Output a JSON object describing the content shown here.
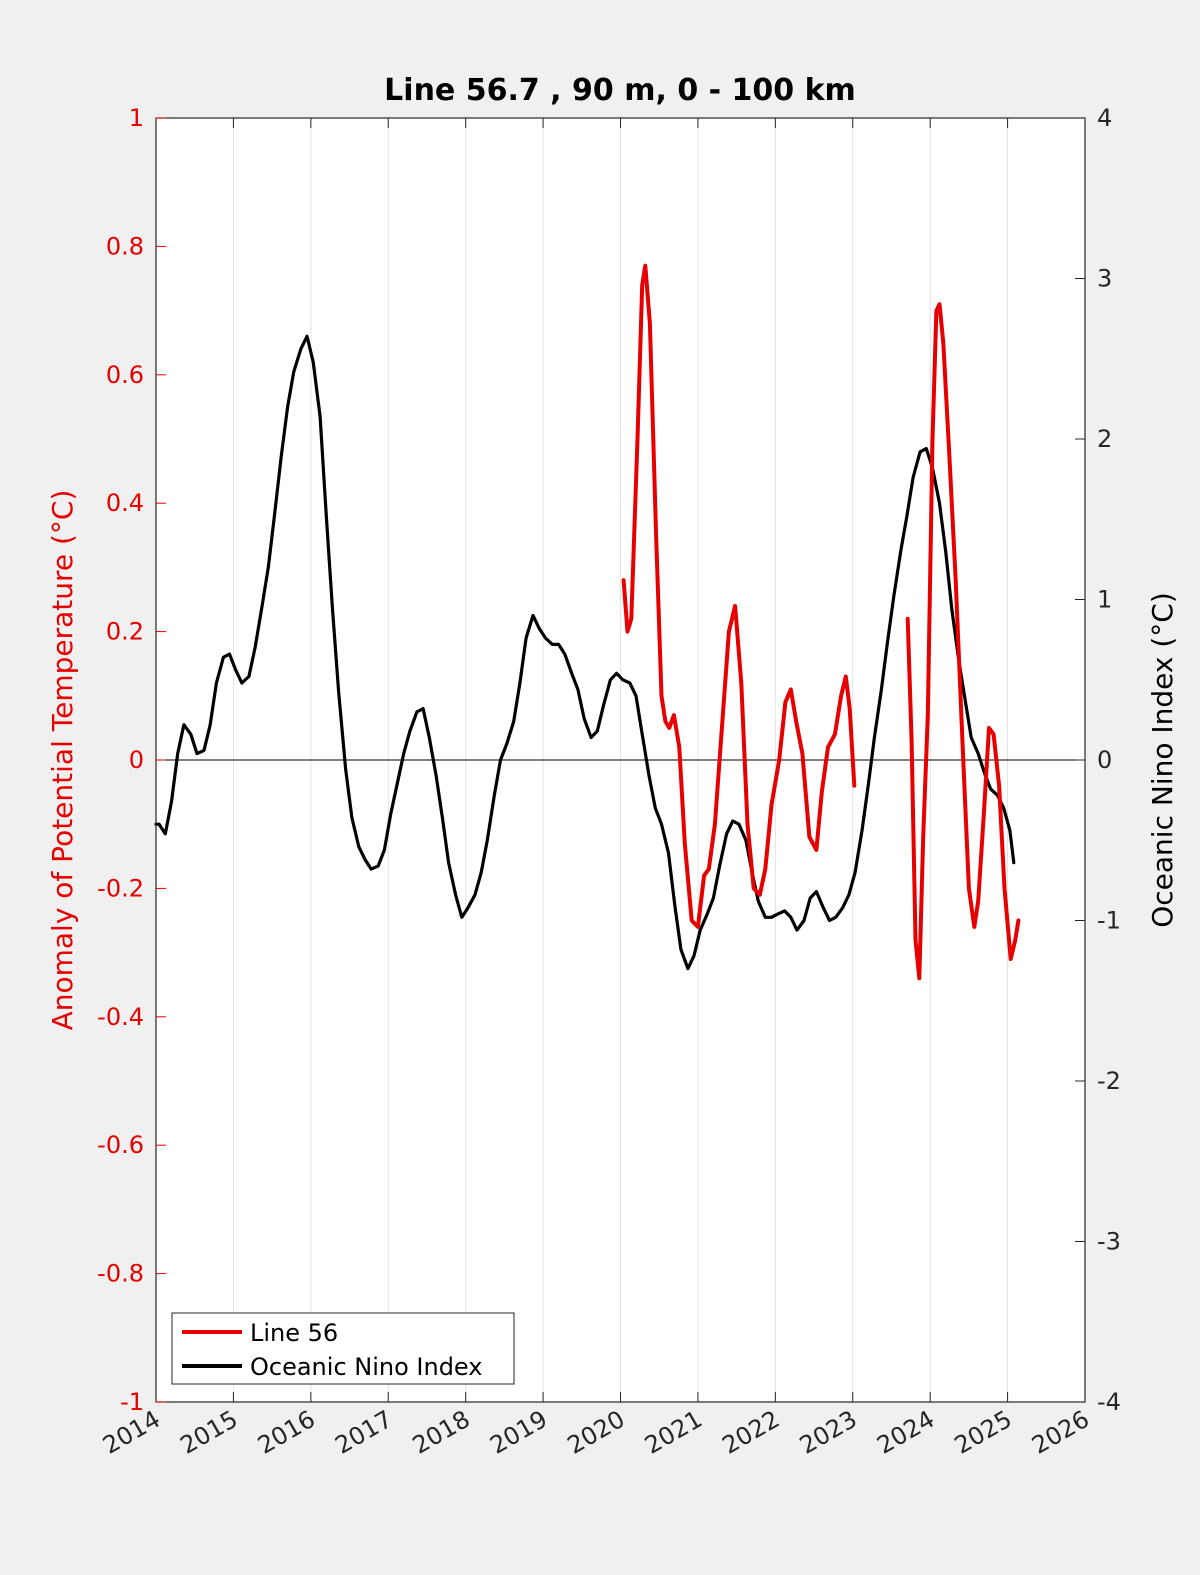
{
  "chart_data": {
    "type": "line",
    "title": "Line 56.7 , 90 m, 0 - 100 km",
    "xlabel": "",
    "ylabel_left": "Anomaly of Potential Temperature (°C)",
    "ylabel_right": "Oceanic Nino Index (°C)",
    "xlim": [
      2014,
      2026
    ],
    "ylim_left": [
      -1,
      1
    ],
    "ylim_right": [
      -4,
      4
    ],
    "x_ticks": [
      "2014",
      "2015",
      "2016",
      "2017",
      "2018",
      "2019",
      "2020",
      "2021",
      "2022",
      "2023",
      "2024",
      "2025",
      "2026"
    ],
    "y_ticks_left": [
      "1",
      "0.8",
      "0.6",
      "0.4",
      "0.2",
      "0",
      "-0.2",
      "-0.4",
      "-0.6",
      "-0.8",
      "-1"
    ],
    "y_ticks_right": [
      "4",
      "3",
      "2",
      "1",
      "0",
      "-1",
      "-2",
      "-3",
      "-4"
    ],
    "grid": "vertical",
    "zero_line": true,
    "legend_position": "bottom-left",
    "series": [
      {
        "name": "Line 56",
        "axis": "left",
        "color": "#e60000",
        "segments": [
          [
            [
              2020.04,
              0.28
            ],
            [
              2020.09,
              0.2
            ],
            [
              2020.14,
              0.22
            ],
            [
              2020.22,
              0.5
            ],
            [
              2020.28,
              0.74
            ],
            [
              2020.32,
              0.77
            ],
            [
              2020.38,
              0.68
            ],
            [
              2020.46,
              0.35
            ],
            [
              2020.53,
              0.1
            ],
            [
              2020.58,
              0.06
            ],
            [
              2020.63,
              0.05
            ],
            [
              2020.69,
              0.07
            ],
            [
              2020.76,
              0.02
            ],
            [
              2020.83,
              -0.13
            ],
            [
              2020.92,
              -0.25
            ],
            [
              2021.0,
              -0.26
            ],
            [
              2021.08,
              -0.18
            ],
            [
              2021.14,
              -0.17
            ],
            [
              2021.22,
              -0.1
            ],
            [
              2021.31,
              0.05
            ],
            [
              2021.4,
              0.2
            ],
            [
              2021.48,
              0.24
            ],
            [
              2021.56,
              0.12
            ],
            [
              2021.64,
              -0.1
            ],
            [
              2021.72,
              -0.2
            ],
            [
              2021.8,
              -0.21
            ],
            [
              2021.87,
              -0.17
            ],
            [
              2021.95,
              -0.07
            ],
            [
              2022.05,
              0.0
            ],
            [
              2022.13,
              0.09
            ],
            [
              2022.2,
              0.11
            ],
            [
              2022.27,
              0.06
            ],
            [
              2022.35,
              0.01
            ],
            [
              2022.44,
              -0.12
            ],
            [
              2022.53,
              -0.14
            ],
            [
              2022.6,
              -0.05
            ],
            [
              2022.68,
              0.02
            ],
            [
              2022.77,
              0.04
            ],
            [
              2022.85,
              0.1
            ],
            [
              2022.91,
              0.13
            ],
            [
              2022.96,
              0.08
            ],
            [
              2023.02,
              -0.04
            ]
          ],
          [
            [
              2023.71,
              0.22
            ],
            [
              2023.76,
              0.03
            ],
            [
              2023.81,
              -0.28
            ],
            [
              2023.86,
              -0.34
            ],
            [
              2023.91,
              -0.12
            ],
            [
              2023.97,
              0.07
            ],
            [
              2024.03,
              0.5
            ],
            [
              2024.08,
              0.7
            ],
            [
              2024.12,
              0.71
            ],
            [
              2024.17,
              0.65
            ],
            [
              2024.25,
              0.47
            ],
            [
              2024.33,
              0.28
            ],
            [
              2024.42,
              0.02
            ],
            [
              2024.5,
              -0.2
            ],
            [
              2024.57,
              -0.26
            ],
            [
              2024.62,
              -0.22
            ],
            [
              2024.69,
              -0.09
            ],
            [
              2024.76,
              0.05
            ],
            [
              2024.82,
              0.04
            ],
            [
              2024.89,
              -0.04
            ],
            [
              2024.96,
              -0.2
            ],
            [
              2025.04,
              -0.31
            ],
            [
              2025.1,
              -0.28
            ],
            [
              2025.14,
              -0.25
            ]
          ]
        ]
      },
      {
        "name": "Oceanic Nino Index",
        "axis": "right",
        "color": "#000000",
        "points": [
          [
            2014.0,
            -0.4
          ],
          [
            2014.04,
            -0.4
          ],
          [
            2014.12,
            -0.46
          ],
          [
            2014.2,
            -0.26
          ],
          [
            2014.28,
            0.04
          ],
          [
            2014.36,
            0.22
          ],
          [
            2014.45,
            0.16
          ],
          [
            2014.53,
            0.04
          ],
          [
            2014.62,
            0.06
          ],
          [
            2014.7,
            0.22
          ],
          [
            2014.78,
            0.48
          ],
          [
            2014.87,
            0.64
          ],
          [
            2014.95,
            0.66
          ],
          [
            2015.03,
            0.56
          ],
          [
            2015.11,
            0.48
          ],
          [
            2015.2,
            0.52
          ],
          [
            2015.28,
            0.7
          ],
          [
            2015.37,
            0.96
          ],
          [
            2015.45,
            1.2
          ],
          [
            2015.53,
            1.52
          ],
          [
            2015.62,
            1.9
          ],
          [
            2015.7,
            2.2
          ],
          [
            2015.78,
            2.42
          ],
          [
            2015.87,
            2.56
          ],
          [
            2015.95,
            2.64
          ],
          [
            2016.03,
            2.48
          ],
          [
            2016.12,
            2.14
          ],
          [
            2016.2,
            1.52
          ],
          [
            2016.28,
            0.94
          ],
          [
            2016.36,
            0.42
          ],
          [
            2016.45,
            -0.06
          ],
          [
            2016.53,
            -0.36
          ],
          [
            2016.62,
            -0.54
          ],
          [
            2016.7,
            -0.62
          ],
          [
            2016.78,
            -0.68
          ],
          [
            2016.87,
            -0.66
          ],
          [
            2016.95,
            -0.56
          ],
          [
            2017.03,
            -0.34
          ],
          [
            2017.12,
            -0.14
          ],
          [
            2017.2,
            0.04
          ],
          [
            2017.28,
            0.18
          ],
          [
            2017.37,
            0.3
          ],
          [
            2017.45,
            0.32
          ],
          [
            2017.53,
            0.14
          ],
          [
            2017.62,
            -0.1
          ],
          [
            2017.7,
            -0.36
          ],
          [
            2017.78,
            -0.64
          ],
          [
            2017.87,
            -0.84
          ],
          [
            2017.95,
            -0.98
          ],
          [
            2018.03,
            -0.92
          ],
          [
            2018.12,
            -0.84
          ],
          [
            2018.2,
            -0.7
          ],
          [
            2018.28,
            -0.5
          ],
          [
            2018.37,
            -0.22
          ],
          [
            2018.45,
            0
          ],
          [
            2018.53,
            0.1
          ],
          [
            2018.62,
            0.24
          ],
          [
            2018.7,
            0.48
          ],
          [
            2018.78,
            0.76
          ],
          [
            2018.87,
            0.9
          ],
          [
            2018.95,
            0.82
          ],
          [
            2019.03,
            0.76
          ],
          [
            2019.12,
            0.72
          ],
          [
            2019.2,
            0.72
          ],
          [
            2019.28,
            0.66
          ],
          [
            2019.37,
            0.54
          ],
          [
            2019.45,
            0.44
          ],
          [
            2019.53,
            0.26
          ],
          [
            2019.62,
            0.14
          ],
          [
            2019.7,
            0.18
          ],
          [
            2019.78,
            0.34
          ],
          [
            2019.87,
            0.5
          ],
          [
            2019.95,
            0.54
          ],
          [
            2020.03,
            0.5
          ],
          [
            2020.12,
            0.48
          ],
          [
            2020.2,
            0.4
          ],
          [
            2020.28,
            0.16
          ],
          [
            2020.37,
            -0.1
          ],
          [
            2020.45,
            -0.3
          ],
          [
            2020.53,
            -0.4
          ],
          [
            2020.62,
            -0.58
          ],
          [
            2020.7,
            -0.9
          ],
          [
            2020.78,
            -1.18
          ],
          [
            2020.87,
            -1.3
          ],
          [
            2020.95,
            -1.22
          ],
          [
            2021.03,
            -1.06
          ],
          [
            2021.12,
            -0.96
          ],
          [
            2021.2,
            -0.86
          ],
          [
            2021.28,
            -0.66
          ],
          [
            2021.37,
            -0.46
          ],
          [
            2021.45,
            -0.38
          ],
          [
            2021.53,
            -0.4
          ],
          [
            2021.62,
            -0.5
          ],
          [
            2021.7,
            -0.7
          ],
          [
            2021.78,
            -0.88
          ],
          [
            2021.87,
            -0.98
          ],
          [
            2021.95,
            -0.98
          ],
          [
            2022.03,
            -0.96
          ],
          [
            2022.12,
            -0.94
          ],
          [
            2022.2,
            -0.98
          ],
          [
            2022.28,
            -1.06
          ],
          [
            2022.37,
            -1.0
          ],
          [
            2022.45,
            -0.86
          ],
          [
            2022.53,
            -0.82
          ],
          [
            2022.62,
            -0.92
          ],
          [
            2022.7,
            -1.0
          ],
          [
            2022.78,
            -0.98
          ],
          [
            2022.87,
            -0.92
          ],
          [
            2022.95,
            -0.84
          ],
          [
            2023.03,
            -0.7
          ],
          [
            2023.12,
            -0.44
          ],
          [
            2023.2,
            -0.16
          ],
          [
            2023.28,
            0.14
          ],
          [
            2023.37,
            0.44
          ],
          [
            2023.45,
            0.74
          ],
          [
            2023.53,
            1.02
          ],
          [
            2023.62,
            1.3
          ],
          [
            2023.7,
            1.52
          ],
          [
            2023.78,
            1.76
          ],
          [
            2023.87,
            1.92
          ],
          [
            2023.95,
            1.94
          ],
          [
            2024.03,
            1.82
          ],
          [
            2024.12,
            1.6
          ],
          [
            2024.2,
            1.3
          ],
          [
            2024.28,
            0.94
          ],
          [
            2024.37,
            0.62
          ],
          [
            2024.45,
            0.38
          ],
          [
            2024.53,
            0.14
          ],
          [
            2024.62,
            0.04
          ],
          [
            2024.7,
            -0.08
          ],
          [
            2024.78,
            -0.18
          ],
          [
            2024.87,
            -0.22
          ],
          [
            2024.95,
            -0.3
          ],
          [
            2025.03,
            -0.44
          ],
          [
            2025.08,
            -0.64
          ]
        ]
      }
    ]
  }
}
